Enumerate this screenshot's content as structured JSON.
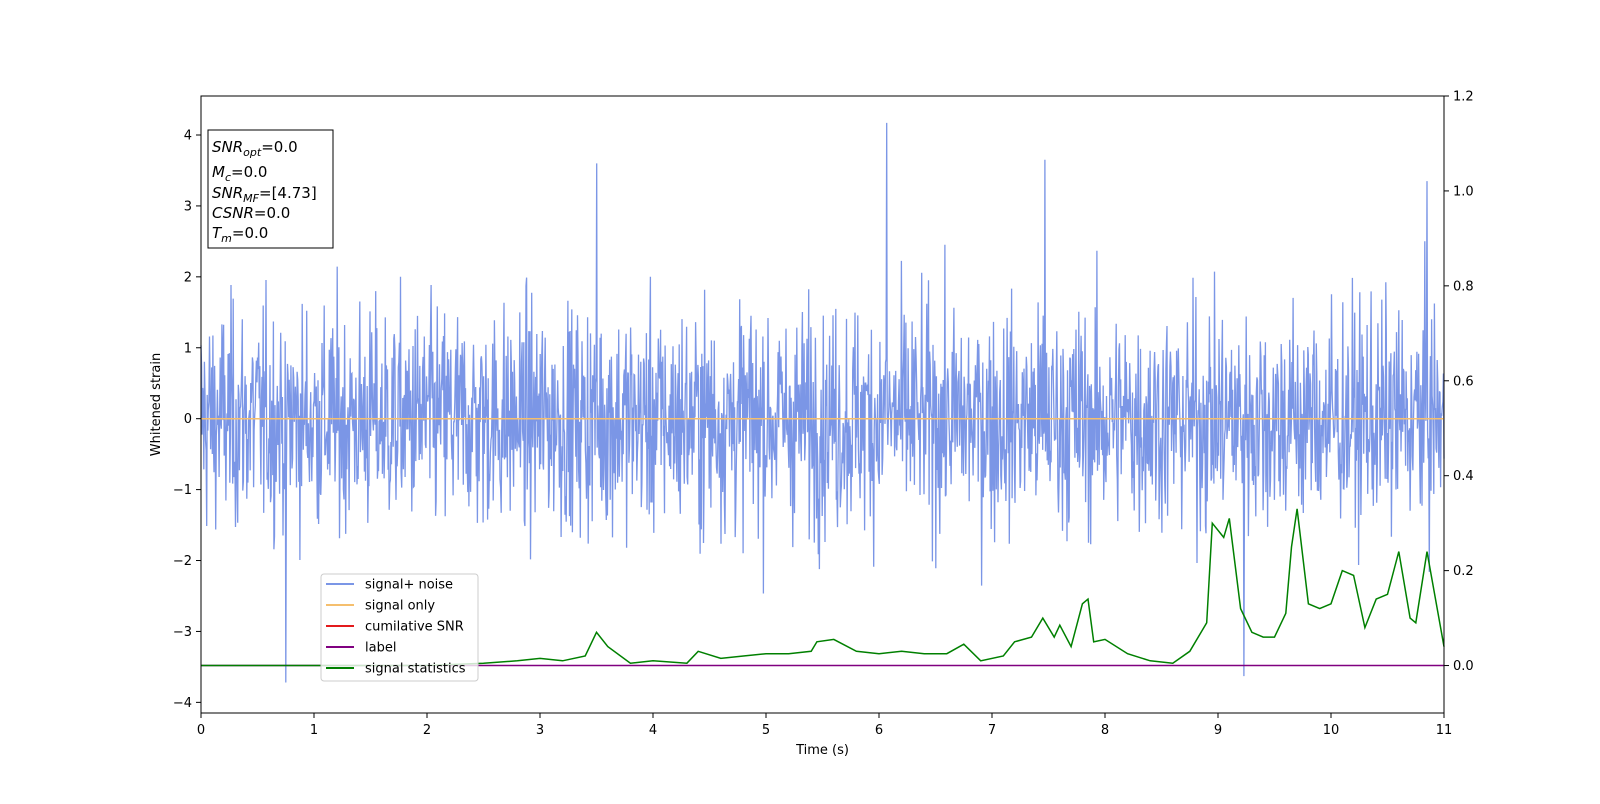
{
  "chart_data": {
    "type": "line",
    "xlabel": "Time (s)",
    "ylabel": "Whitened strain",
    "xlim": [
      0,
      11
    ],
    "ylim_left": [
      -4.15,
      4.55
    ],
    "ylim_right": [
      -0.1,
      1.2
    ],
    "x_ticks": [
      0,
      1,
      2,
      3,
      4,
      5,
      6,
      7,
      8,
      9,
      10,
      11
    ],
    "y_ticks_left": [
      -4,
      -3,
      -2,
      -1,
      0,
      1,
      2,
      3,
      4
    ],
    "y_ticks_right": [
      0.0,
      0.2,
      0.4,
      0.6,
      0.8,
      1.0,
      1.2
    ],
    "grid": false,
    "legend_position": "lower-left",
    "info_box": {
      "position": "upper-left",
      "lines": [
        {
          "base": "SNR",
          "sub": "opt",
          "value": "=0.0"
        },
        {
          "base": "M",
          "sub": "c",
          "value": "=0.0"
        },
        {
          "base": "SNR",
          "sub": "MF",
          "value": "=[4.73]"
        },
        {
          "base": "CSNR",
          "sub": "",
          "value": "=0.0"
        },
        {
          "base": "T",
          "sub": "m",
          "value": "=0.0"
        }
      ]
    },
    "series": [
      {
        "name": "signal+ noise",
        "axis": "left",
        "color": "#7b96e6",
        "kind": "noise",
        "sample_count": 2200,
        "approx_range": [
          -3.7,
          4.15
        ],
        "notable_peaks": [
          [
            0.75,
            -3.72
          ],
          [
            3.5,
            3.6
          ],
          [
            6.07,
            4.17
          ],
          [
            7.47,
            3.65
          ],
          [
            9.23,
            -3.63
          ],
          [
            10.85,
            3.35
          ]
        ]
      },
      {
        "name": "signal only",
        "axis": "left",
        "color": "#f5bf6e",
        "x": [
          0,
          11
        ],
        "y": [
          0,
          0
        ]
      },
      {
        "name": "cumilative SNR",
        "axis": "left",
        "color": "#e31a1c",
        "x": [],
        "y": []
      },
      {
        "name": "label",
        "axis": "right",
        "color": "#800080",
        "x": [
          0,
          11
        ],
        "y": [
          0,
          0
        ]
      },
      {
        "name": "signal statistics",
        "axis": "right",
        "color": "#008000",
        "x": [
          0,
          0.3,
          0.6,
          1.0,
          1.5,
          2.0,
          2.5,
          2.8,
          3.0,
          3.2,
          3.4,
          3.5,
          3.6,
          3.8,
          4.0,
          4.3,
          4.4,
          4.6,
          4.8,
          5.0,
          5.2,
          5.4,
          5.45,
          5.6,
          5.8,
          6.0,
          6.2,
          6.4,
          6.6,
          6.75,
          6.9,
          7.1,
          7.2,
          7.35,
          7.45,
          7.55,
          7.6,
          7.7,
          7.8,
          7.85,
          7.9,
          8.0,
          8.2,
          8.4,
          8.6,
          8.75,
          8.9,
          8.95,
          9.05,
          9.1,
          9.2,
          9.3,
          9.4,
          9.5,
          9.6,
          9.65,
          9.7,
          9.8,
          9.9,
          10.0,
          10.1,
          10.2,
          10.3,
          10.4,
          10.5,
          10.6,
          10.7,
          10.75,
          10.85,
          11.0
        ],
        "y": [
          0.0,
          0.0,
          0.0,
          0.0,
          0.0,
          0.0,
          0.005,
          0.01,
          0.015,
          0.01,
          0.02,
          0.07,
          0.04,
          0.005,
          0.01,
          0.005,
          0.03,
          0.015,
          0.02,
          0.025,
          0.025,
          0.03,
          0.05,
          0.055,
          0.03,
          0.025,
          0.03,
          0.025,
          0.025,
          0.045,
          0.01,
          0.02,
          0.05,
          0.06,
          0.1,
          0.06,
          0.085,
          0.04,
          0.13,
          0.14,
          0.05,
          0.055,
          0.025,
          0.01,
          0.005,
          0.03,
          0.09,
          0.3,
          0.27,
          0.31,
          0.12,
          0.07,
          0.06,
          0.06,
          0.11,
          0.25,
          0.33,
          0.13,
          0.12,
          0.13,
          0.2,
          0.19,
          0.08,
          0.14,
          0.15,
          0.24,
          0.1,
          0.09,
          0.24,
          0.04
        ]
      }
    ]
  }
}
